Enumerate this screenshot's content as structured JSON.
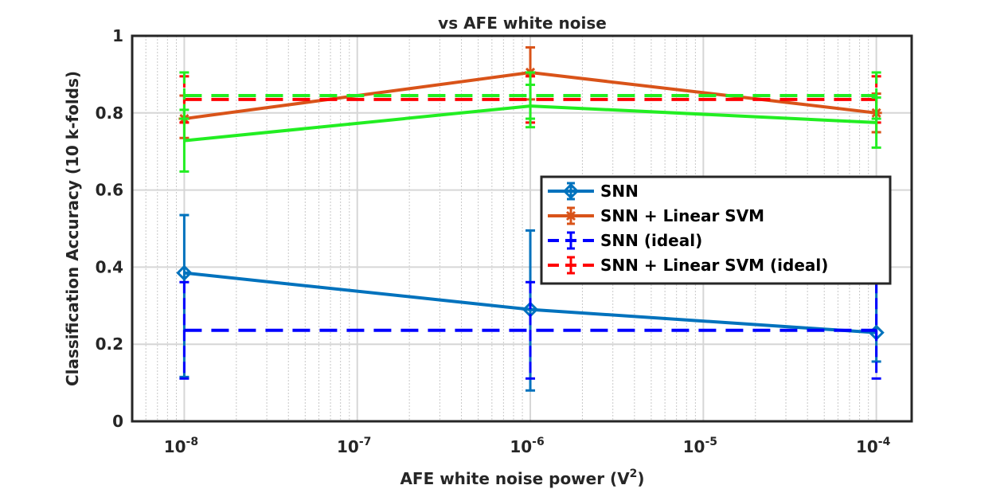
{
  "chart_data": {
    "type": "line",
    "title": "vs AFE white noise",
    "xlabel": "AFE white noise power (V",
    "xlabel_sup": "2",
    "xlabel_suffix": ")",
    "ylabel": "Classification Accuracy (10 k-folds)",
    "x_scale": "log",
    "xlim": [
      5e-09,
      0.00016
    ],
    "ylim": [
      0,
      1
    ],
    "x_ticks": [
      1e-08,
      1e-07,
      1e-06,
      1e-05,
      0.0001
    ],
    "x_tick_labels": [
      {
        "base": "10",
        "exp": "-8"
      },
      {
        "base": "10",
        "exp": "-7"
      },
      {
        "base": "10",
        "exp": "-6"
      },
      {
        "base": "10",
        "exp": "-5"
      },
      {
        "base": "10",
        "exp": "-4"
      }
    ],
    "y_ticks": [
      0,
      0.2,
      0.4,
      0.6,
      0.8,
      1
    ],
    "y_tick_labels": [
      "0",
      "0.2",
      "0.4",
      "0.6",
      "0.8",
      "1"
    ],
    "grid": true,
    "legend_position": "right",
    "x": [
      1e-08,
      1e-06,
      0.0001
    ],
    "series": [
      {
        "name": "SNN",
        "color": "#0072BD",
        "style": "solid",
        "marker": "diamond",
        "values": [
          0.385,
          0.29,
          0.23
        ],
        "err_low": [
          0.27,
          0.21,
          0.075
        ],
        "err_high": [
          0.15,
          0.205,
          0.13
        ]
      },
      {
        "name": "SNN + Linear SVM",
        "color": "#D95319",
        "style": "solid",
        "marker": "star",
        "values": [
          0.785,
          0.905,
          0.8
        ],
        "err_low": [
          0.05,
          0.07,
          0.05
        ],
        "err_high": [
          0.06,
          0.065,
          0.05
        ]
      },
      {
        "name": "SNN (ideal)",
        "color": "#0000FF",
        "style": "dashed",
        "marker": "none",
        "values": [
          0.236,
          0.236,
          0.236
        ],
        "err_low": [
          0.125,
          0.125,
          0.125
        ],
        "err_high": [
          0.125,
          0.125,
          0.125
        ]
      },
      {
        "name": "SNN + Linear SVM (ideal)",
        "color": "#FF0000",
        "style": "dashed",
        "marker": "none",
        "values": [
          0.835,
          0.835,
          0.835
        ],
        "err_low": [
          0.06,
          0.06,
          0.06
        ],
        "err_high": [
          0.06,
          0.06,
          0.06
        ]
      },
      {
        "name": "",
        "color": "#22EE22",
        "style": "solid",
        "marker": "none",
        "values": [
          0.728,
          0.818,
          0.775
        ],
        "err_low": [
          0.08,
          0.055,
          0.065
        ],
        "err_high": [
          0.08,
          0.055,
          0.065
        ]
      },
      {
        "name": "",
        "color": "#22EE22",
        "style": "dashed",
        "marker": "none",
        "values": [
          0.845,
          0.845,
          0.845
        ],
        "err_low": [
          0.06,
          0.06,
          0.06
        ],
        "err_high": [
          0.06,
          0.06,
          0.06
        ]
      }
    ]
  }
}
